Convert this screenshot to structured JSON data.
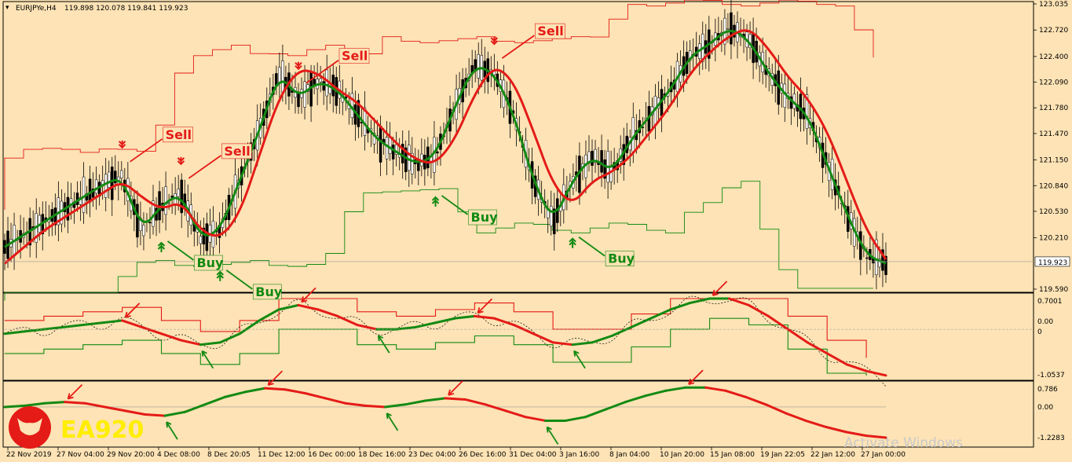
{
  "window": {
    "symbol_info": "EURJPYe,H4",
    "ohlc": "119.898 120.078 119.841 119.923"
  },
  "brand": {
    "name": "EA920"
  },
  "watermark": "Activate Windows",
  "colors": {
    "background": "#fde3b5",
    "sell": "#e41b17",
    "buy": "#138a13",
    "grid": "#9a9a9a"
  },
  "chart_data": [
    {
      "type": "line",
      "panel": "price",
      "ylim": [
        119.59,
        123.035
      ],
      "y_ticks": [
        "123.035",
        "122.720",
        "122.400",
        "122.090",
        "121.780",
        "121.470",
        "121.150",
        "120.840",
        "120.530",
        "120.210",
        "119.590"
      ],
      "current_price": "119.923",
      "x_tick_labels": [
        "22 Nov 2019",
        "27 Nov 04:00",
        "29 Nov 20:00",
        "4 Dec 08:00",
        "8 Dec 20:05",
        "11 Dec 12:00",
        "16 Dec 00:00",
        "18 Dec 16:00",
        "23 Dec 04:00",
        "26 Dec 16:00",
        "31 Dec 04:00",
        "3 Jan 16:00",
        "8 Jan 04:00",
        "10 Jan 20:00",
        "15 Jan 08:00",
        "19 Jan 22:05",
        "22 Jan 12:00",
        "27 Jan 00:00"
      ],
      "series": [
        {
          "values": [
            120.1,
            120.25,
            120.4,
            120.55,
            120.7,
            120.85,
            120.95,
            120.3,
            120.6,
            120.75,
            120.2,
            120.3,
            120.9,
            121.5,
            122.2,
            121.9,
            122.1,
            122.0,
            121.7,
            121.4,
            121.25,
            121.1,
            121.2,
            121.8,
            122.3,
            122.2,
            121.7,
            120.9,
            120.4,
            120.9,
            121.2,
            121.0,
            121.4,
            121.7,
            122.0,
            122.4,
            122.55,
            122.75,
            122.6,
            122.2,
            121.9,
            121.7,
            121.1,
            120.5,
            120.0,
            119.9
          ]
        },
        {
          "values": [
            119.9,
            120.1,
            120.3,
            120.45,
            120.6,
            120.75,
            120.9,
            120.7,
            120.55,
            120.65,
            120.3,
            120.2,
            120.5,
            121.2,
            121.9,
            122.25,
            122.2,
            122.0,
            121.85,
            121.6,
            121.35,
            121.15,
            121.1,
            121.4,
            121.95,
            122.3,
            122.1,
            121.5,
            120.85,
            120.6,
            120.9,
            121.0,
            121.2,
            121.5,
            121.8,
            122.2,
            122.45,
            122.65,
            122.75,
            122.5,
            122.15,
            121.9,
            121.5,
            120.9,
            120.3,
            119.95
          ]
        }
      ],
      "sell_labels": [
        "Sell",
        "Sell",
        "Sell",
        "Sell"
      ],
      "buy_labels": [
        "Buy",
        "Buy",
        "Buy",
        "Buy"
      ]
    },
    {
      "type": "line",
      "panel": "oscillator-1",
      "ylim": [
        -1.0537,
        0.7001
      ],
      "y_ticks": [
        "0.7001",
        "0.00",
        "0",
        "-1.0537"
      ],
      "series": [
        {
          "values": [
            -0.1,
            -0.05,
            0.0,
            0.05,
            0.1,
            0.15,
            0.2,
            0.05,
            -0.1,
            -0.25,
            -0.35,
            -0.3,
            -0.1,
            0.2,
            0.45,
            0.55,
            0.45,
            0.3,
            0.1,
            0.0,
            0.0,
            0.05,
            0.15,
            0.25,
            0.3,
            0.25,
            0.1,
            -0.1,
            -0.3,
            -0.35,
            -0.3,
            -0.15,
            0.05,
            0.25,
            0.45,
            0.6,
            0.7,
            0.7,
            0.55,
            0.3,
            0.0,
            -0.3,
            -0.55,
            -0.8,
            -0.95,
            -1.05
          ]
        }
      ]
    },
    {
      "type": "line",
      "panel": "oscillator-2",
      "ylim": [
        -1.2283,
        0.786
      ],
      "y_ticks": [
        "0.786",
        "0.00",
        "-1.2283"
      ],
      "series": [
        {
          "values": [
            0.0,
            0.05,
            0.15,
            0.2,
            0.15,
            0.0,
            -0.15,
            -0.3,
            -0.35,
            -0.2,
            0.1,
            0.4,
            0.6,
            0.75,
            0.7,
            0.55,
            0.35,
            0.15,
            0.05,
            0.0,
            0.1,
            0.25,
            0.35,
            0.3,
            0.1,
            -0.15,
            -0.4,
            -0.55,
            -0.55,
            -0.4,
            -0.1,
            0.2,
            0.45,
            0.65,
            0.78,
            0.78,
            0.65,
            0.4,
            0.1,
            -0.25,
            -0.55,
            -0.8,
            -1.0,
            -1.15,
            -1.23
          ]
        }
      ]
    }
  ]
}
